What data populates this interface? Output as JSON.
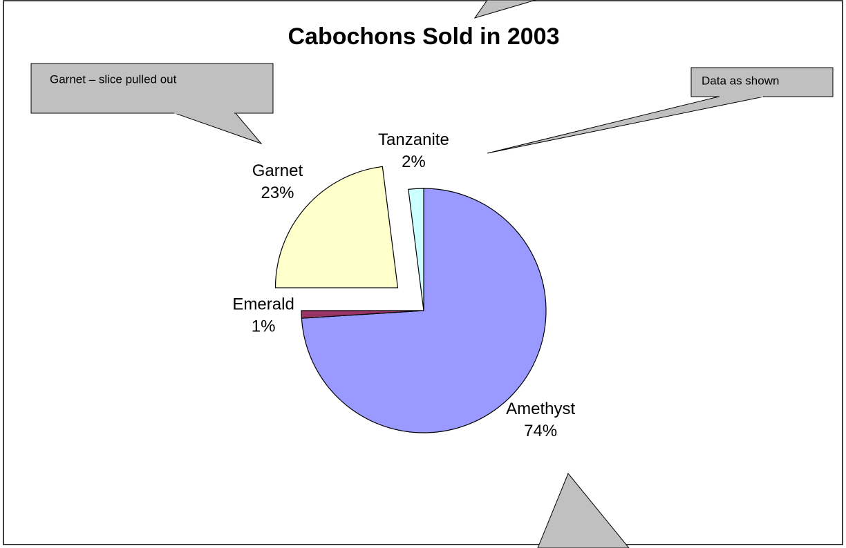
{
  "chart_data": {
    "type": "pie",
    "title": "Cabochons Sold in 2003",
    "categories": [
      "Amethyst",
      "Emerald",
      "Garnet",
      "Tanzanite"
    ],
    "values": [
      74,
      1,
      23,
      2
    ],
    "value_labels": [
      "74%",
      "1%",
      "23%",
      "2%"
    ],
    "colors": [
      "#9999ff",
      "#993366",
      "#ffffcc",
      "#ccffff"
    ],
    "exploded": "Garnet",
    "annotations": [
      "Garnet – slice pulled out",
      "Data as shown"
    ]
  }
}
